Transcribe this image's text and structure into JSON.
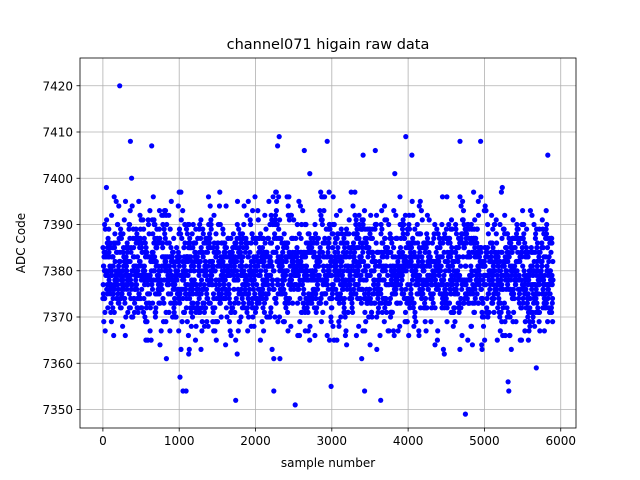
{
  "chart_data": {
    "type": "scatter",
    "title": "channel071 higain raw data",
    "xlabel": "sample number",
    "ylabel": "ADC Code",
    "xlim": [
      -300,
      6200
    ],
    "ylim": [
      7346,
      7426
    ],
    "xticks": [
      0,
      1000,
      2000,
      3000,
      4000,
      5000,
      6000
    ],
    "yticks": [
      7350,
      7360,
      7370,
      7380,
      7390,
      7400,
      7410,
      7420
    ],
    "grid": true,
    "marker_color": "#0000ff",
    "series": [
      {
        "n_points": 5900,
        "x_range": [
          0,
          5899
        ],
        "center": 7380,
        "spread": 6.5,
        "notable_points": [
          {
            "x": 220,
            "y": 7420
          },
          {
            "x": 1740,
            "y": 7352
          },
          {
            "x": 2520,
            "y": 7351
          },
          {
            "x": 4750,
            "y": 7349
          },
          {
            "x": 2310,
            "y": 7409
          },
          {
            "x": 3970,
            "y": 7409
          },
          {
            "x": 2940,
            "y": 7408
          },
          {
            "x": 360,
            "y": 7408
          },
          {
            "x": 4680,
            "y": 7408
          },
          {
            "x": 4950,
            "y": 7408
          },
          {
            "x": 640,
            "y": 7407
          },
          {
            "x": 2290,
            "y": 7407
          },
          {
            "x": 2640,
            "y": 7406
          },
          {
            "x": 3570,
            "y": 7406
          },
          {
            "x": 5830,
            "y": 7405
          },
          {
            "x": 4050,
            "y": 7405
          },
          {
            "x": 3410,
            "y": 7405
          },
          {
            "x": 1010,
            "y": 7357
          },
          {
            "x": 1050,
            "y": 7354
          },
          {
            "x": 1090,
            "y": 7354
          },
          {
            "x": 2240,
            "y": 7354
          },
          {
            "x": 3430,
            "y": 7354
          },
          {
            "x": 3640,
            "y": 7352
          },
          {
            "x": 5320,
            "y": 7354
          },
          {
            "x": 5310,
            "y": 7356
          },
          {
            "x": 2990,
            "y": 7355
          }
        ]
      }
    ]
  }
}
